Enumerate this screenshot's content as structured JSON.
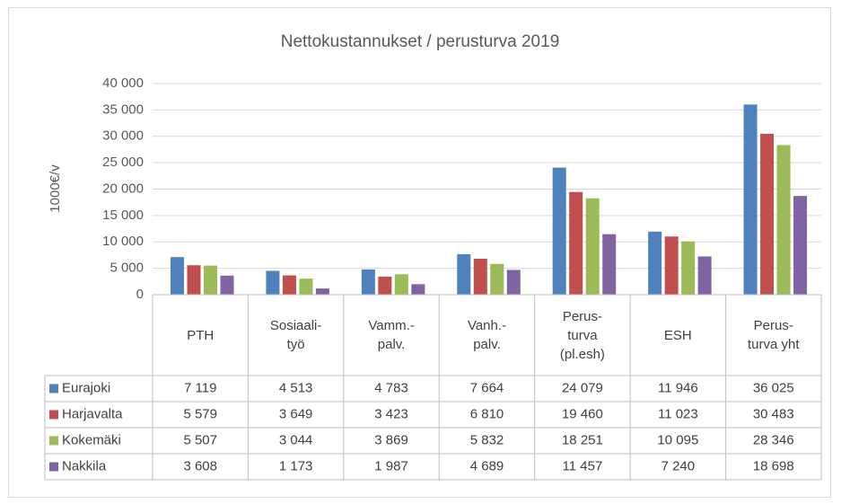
{
  "chart_data": {
    "type": "bar",
    "title": "Nettokustannukset / perusturva 2019",
    "y_label": "1000€/v",
    "categories": [
      "PTH",
      "Sosiaali-\ntyö",
      "Vamm.-\npalv.",
      "Vanh.-\npalv.",
      "Perus-\nturva\n(pl.esh)",
      "ESH",
      "Perus-\nturva yht"
    ],
    "series": [
      {
        "name": "Eurajoki",
        "color": "#4f81bd",
        "values": [
          7119,
          4513,
          4783,
          7664,
          24079,
          11946,
          36025
        ],
        "value_labels": [
          "7 119",
          "4 513",
          "4 783",
          "7 664",
          "24 079",
          "11 946",
          "36 025"
        ]
      },
      {
        "name": "Harjavalta",
        "color": "#c0504d",
        "values": [
          5579,
          3649,
          3423,
          6810,
          19460,
          11023,
          30483
        ],
        "value_labels": [
          "5 579",
          "3 649",
          "3 423",
          "6 810",
          "19 460",
          "11 023",
          "30 483"
        ]
      },
      {
        "name": "Kokemäki",
        "color": "#9bbb59",
        "values": [
          5507,
          3044,
          3869,
          5832,
          18251,
          10095,
          28346
        ],
        "value_labels": [
          "5 507",
          "3 044",
          "3 869",
          "5 832",
          "18 251",
          "10 095",
          "28 346"
        ]
      },
      {
        "name": "Nakkila",
        "color": "#8064a2",
        "values": [
          3608,
          1173,
          1987,
          4689,
          11457,
          7240,
          18698
        ],
        "value_labels": [
          "3 608",
          "1 173",
          "1 987",
          "4 689",
          "11 457",
          "7 240",
          "18 698"
        ]
      }
    ],
    "ylim": [
      0,
      40000
    ],
    "yticks": [
      0,
      {
        "value": 5000,
        "label": "5 000"
      },
      {
        "value": 10000,
        "label": "10 000"
      },
      {
        "value": 15000,
        "label": "15 000"
      },
      {
        "value": 20000,
        "label": "20 000"
      },
      {
        "value": 25000,
        "label": "25 000"
      },
      {
        "value": 30000,
        "label": "30 000"
      },
      {
        "value": 35000,
        "label": "35 000"
      },
      {
        "value": 40000,
        "label": "40 000"
      }
    ],
    "grid": true
  }
}
